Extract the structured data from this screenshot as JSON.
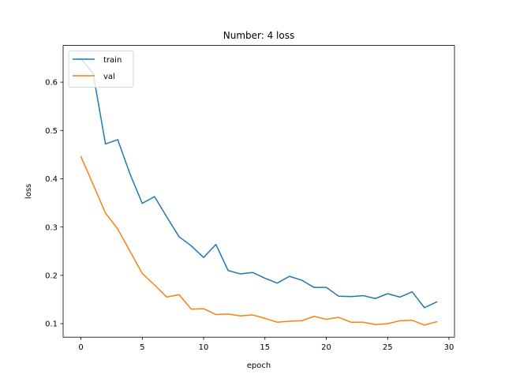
{
  "chart_data": {
    "type": "line",
    "title": "Number: 4 loss",
    "xlabel": "epoch",
    "ylabel": "loss",
    "xlim": [
      -1.45,
      30.45
    ],
    "ylim": [
      0.072,
      0.676
    ],
    "xticks": [
      0,
      5,
      10,
      15,
      20,
      25,
      30
    ],
    "yticks": [
      0.1,
      0.2,
      0.3,
      0.4,
      0.5,
      0.6
    ],
    "xtick_labels": [
      "0",
      "5",
      "10",
      "15",
      "20",
      "25",
      "30"
    ],
    "ytick_labels": [
      "0.1",
      "0.2",
      "0.3",
      "0.4",
      "0.5",
      "0.6"
    ],
    "grid": false,
    "legend_position": "upper left",
    "x": [
      0,
      1,
      2,
      3,
      4,
      5,
      6,
      7,
      8,
      9,
      10,
      11,
      12,
      13,
      14,
      15,
      16,
      17,
      18,
      19,
      20,
      21,
      22,
      23,
      24,
      25,
      26,
      27,
      28,
      29
    ],
    "series": [
      {
        "name": "train",
        "color": "#1f77b4",
        "values": [
          0.649,
          0.618,
          0.472,
          0.481,
          0.41,
          0.349,
          0.363,
          0.321,
          0.28,
          0.261,
          0.237,
          0.264,
          0.21,
          0.203,
          0.206,
          0.194,
          0.184,
          0.198,
          0.19,
          0.175,
          0.175,
          0.157,
          0.156,
          0.158,
          0.152,
          0.162,
          0.155,
          0.166,
          0.133,
          0.145
        ]
      },
      {
        "name": "val",
        "color": "#ff7f0e",
        "values": [
          0.446,
          0.388,
          0.329,
          0.296,
          0.25,
          0.204,
          0.18,
          0.155,
          0.16,
          0.13,
          0.131,
          0.119,
          0.12,
          0.116,
          0.118,
          0.111,
          0.103,
          0.105,
          0.106,
          0.115,
          0.109,
          0.113,
          0.103,
          0.103,
          0.098,
          0.1,
          0.106,
          0.107,
          0.097,
          0.104
        ]
      }
    ]
  }
}
